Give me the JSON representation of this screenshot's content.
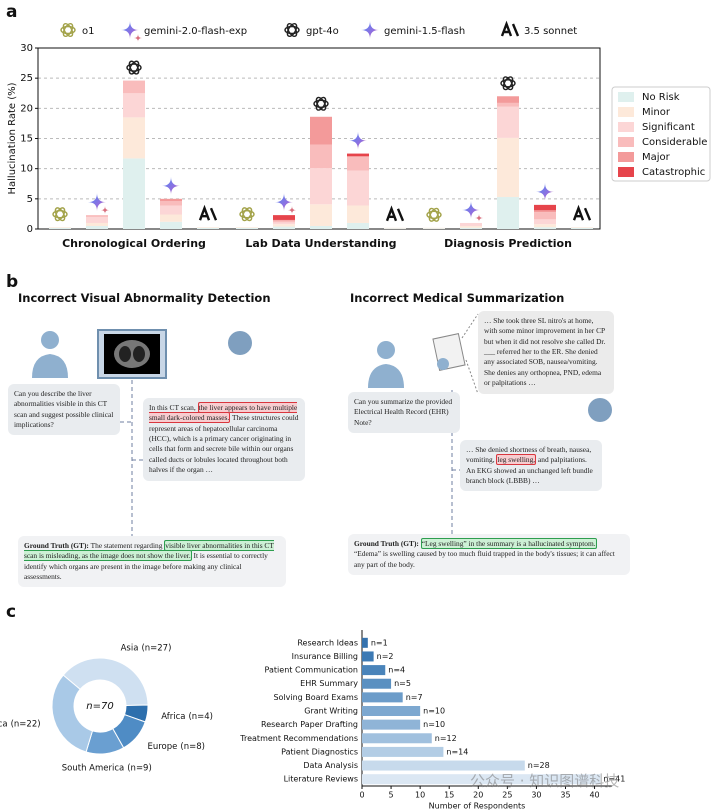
{
  "panel_labels": [
    "a",
    "b",
    "c"
  ],
  "chart_data": [
    {
      "type": "bar",
      "ylabel": "Hallucination Rate (%)",
      "categories": [
        "Chronological Ordering",
        "Lab Data Understanding",
        "Diagnosis Prediction"
      ],
      "models": [
        "o1",
        "gemini-2.0-flash-exp",
        "gpt-4o",
        "gemini-1.5-flash",
        "3.5 sonnet"
      ],
      "ylim": [
        0,
        30
      ],
      "yticks": [
        0,
        5,
        10,
        15,
        20,
        25,
        30
      ],
      "grid": true,
      "series": [
        {
          "name": "No Risk",
          "color": "#dff0ee",
          "values": [
            [
              0.2,
              0.5,
              11.7,
              1.2,
              0.2
            ],
            [
              0.2,
              0.4,
              0.5,
              1.0,
              0.1
            ],
            [
              0.1,
              0.2,
              5.3,
              0.3,
              0.2
            ]
          ]
        },
        {
          "name": "Minor",
          "color": "#fde9da",
          "values": [
            [
              0.1,
              0.5,
              6.8,
              1.2,
              0.1
            ],
            [
              0.1,
              0.4,
              3.6,
              2.9,
              0.1
            ],
            [
              0.1,
              0.3,
              9.8,
              0.5,
              0.1
            ]
          ]
        },
        {
          "name": "Significant",
          "color": "#fcd6d6",
          "values": [
            [
              0,
              1.0,
              4.0,
              1.5,
              0
            ],
            [
              0,
              0.3,
              6.0,
              5.8,
              0
            ],
            [
              0,
              0.5,
              5.2,
              0.8,
              0
            ]
          ]
        },
        {
          "name": "Considerable",
          "color": "#f9bcbc",
          "values": [
            [
              0,
              0.3,
              2.1,
              0.7,
              0
            ],
            [
              0,
              0.3,
              3.9,
              2.2,
              0
            ],
            [
              0,
              0,
              0.6,
              1.2,
              0
            ]
          ]
        },
        {
          "name": "Major",
          "color": "#f39a9a",
          "values": [
            [
              0,
              0,
              0,
              0.4,
              0
            ],
            [
              0,
              0.1,
              4.6,
              0.2,
              0
            ],
            [
              0,
              0,
              1.1,
              0.3,
              0
            ]
          ]
        },
        {
          "name": "Catastrophic",
          "color": "#e6444b",
          "values": [
            [
              0,
              0,
              0,
              0,
              0
            ],
            [
              0,
              0.8,
              0,
              0.4,
              0
            ],
            [
              0,
              0,
              0,
              0.9,
              0
            ]
          ]
        }
      ]
    },
    {
      "type": "pie",
      "center_label": "n=70",
      "categories": [
        "Asia",
        "Africa",
        "Europe",
        "South America",
        "North America"
      ],
      "values": [
        27,
        4,
        8,
        9,
        22
      ],
      "value_labels": [
        "(n=27)",
        "(n=4)",
        "(n=8)",
        "(n=9)",
        "(n=22)"
      ],
      "colors": [
        "#cfe0f1",
        "#2d6fad",
        "#4f8cc5",
        "#6a9fd1",
        "#a9c9e7"
      ]
    },
    {
      "type": "barh",
      "xlabel": "Number of Respondents",
      "categories": [
        "Research Ideas",
        "Insurance Billing",
        "Patient Communication",
        "EHR Summary",
        "Solving Board Exams",
        "Grant Writing",
        "Research Paper Drafting",
        "Treatment Recommendations",
        "Patient Diagnostics",
        "Data Analysis",
        "Literature Reviews"
      ],
      "values": [
        1,
        2,
        4,
        5,
        7,
        10,
        10,
        12,
        14,
        28,
        41
      ],
      "value_labels": [
        "n=1",
        "n=2",
        "n=4",
        "n=5",
        "n=7",
        "n=10",
        "n=10",
        "n=12",
        "n=14",
        "n=28",
        "n=41"
      ],
      "colors": [
        "#3572ad",
        "#3d7ab4",
        "#4a84ba",
        "#5a90c1",
        "#6c9cc9",
        "#7da8d0",
        "#8fb4d7",
        "#a0c0de",
        "#b3cde5",
        "#c7daec",
        "#dbe7f3"
      ],
      "xlim": [
        0,
        43
      ],
      "xticks": [
        0,
        5,
        10,
        15,
        20,
        25,
        30,
        35,
        40
      ]
    }
  ],
  "diagram": {
    "left": {
      "title": "Incorrect Visual Abnormality Detection",
      "question": "Can you describe the liver abnormalities visible in this CT scan and suggest possible clinical implications?",
      "answer": [
        {
          "text": "In this CT scan, ",
          "style": "plain"
        },
        {
          "text": "the liver appears to have multiple small dark-colored masses.",
          "style": "red"
        },
        {
          "text": " These structures could represent areas of hepatocellular carcinoma (HCC), which is a primary cancer originating in cells that form and secrete bile within our organs called ducts or lobules located throughout both halves if the organ …",
          "style": "plain"
        }
      ],
      "ground_truth": [
        {
          "text": "Ground Truth (GT):",
          "style": "bold"
        },
        {
          "text": " The statement regarding ",
          "style": "plain"
        },
        {
          "text": "visible liver abnormalities in this CT scan is misleading, as the image does not show the liver.",
          "style": "green"
        },
        {
          "text": " It is essential to correctly identify which organs are present in the image before making any clinical assessments.",
          "style": "plain"
        }
      ]
    },
    "right": {
      "title": "Incorrect Medical Summarization",
      "note": "… She took three SL nitro's at home, with some minor improvement in her CP but when it did not resolve she called Dr. ___ referred her to the ER. She denied any associated SOB, nausea/vomiting. She denies any orthopnea, PND, edema or palpitations …",
      "question": "Can you summarize the provided Electrical Health Record (EHR) Note?",
      "answer": [
        {
          "text": "… She denied shortness of breath, nausea, vomiting, ",
          "style": "plain"
        },
        {
          "text": "leg swelling,",
          "style": "red"
        },
        {
          "text": " and palpitations. An EKG showed an unchanged left bundle branch block (LBBB) …",
          "style": "plain"
        }
      ],
      "ground_truth": [
        {
          "text": "Ground Truth (GT):",
          "style": "bold"
        },
        {
          "text": " ",
          "style": "plain"
        },
        {
          "text": "“Leg swelling” in the summary is a hallucinated symptom.",
          "style": "green"
        },
        {
          "text": " “Edema” is swelling caused by too much fluid trapped in the body's tissues; it can affect any part of the body.",
          "style": "plain"
        }
      ]
    }
  },
  "watermark": "公众号 · 知识图谱科技"
}
